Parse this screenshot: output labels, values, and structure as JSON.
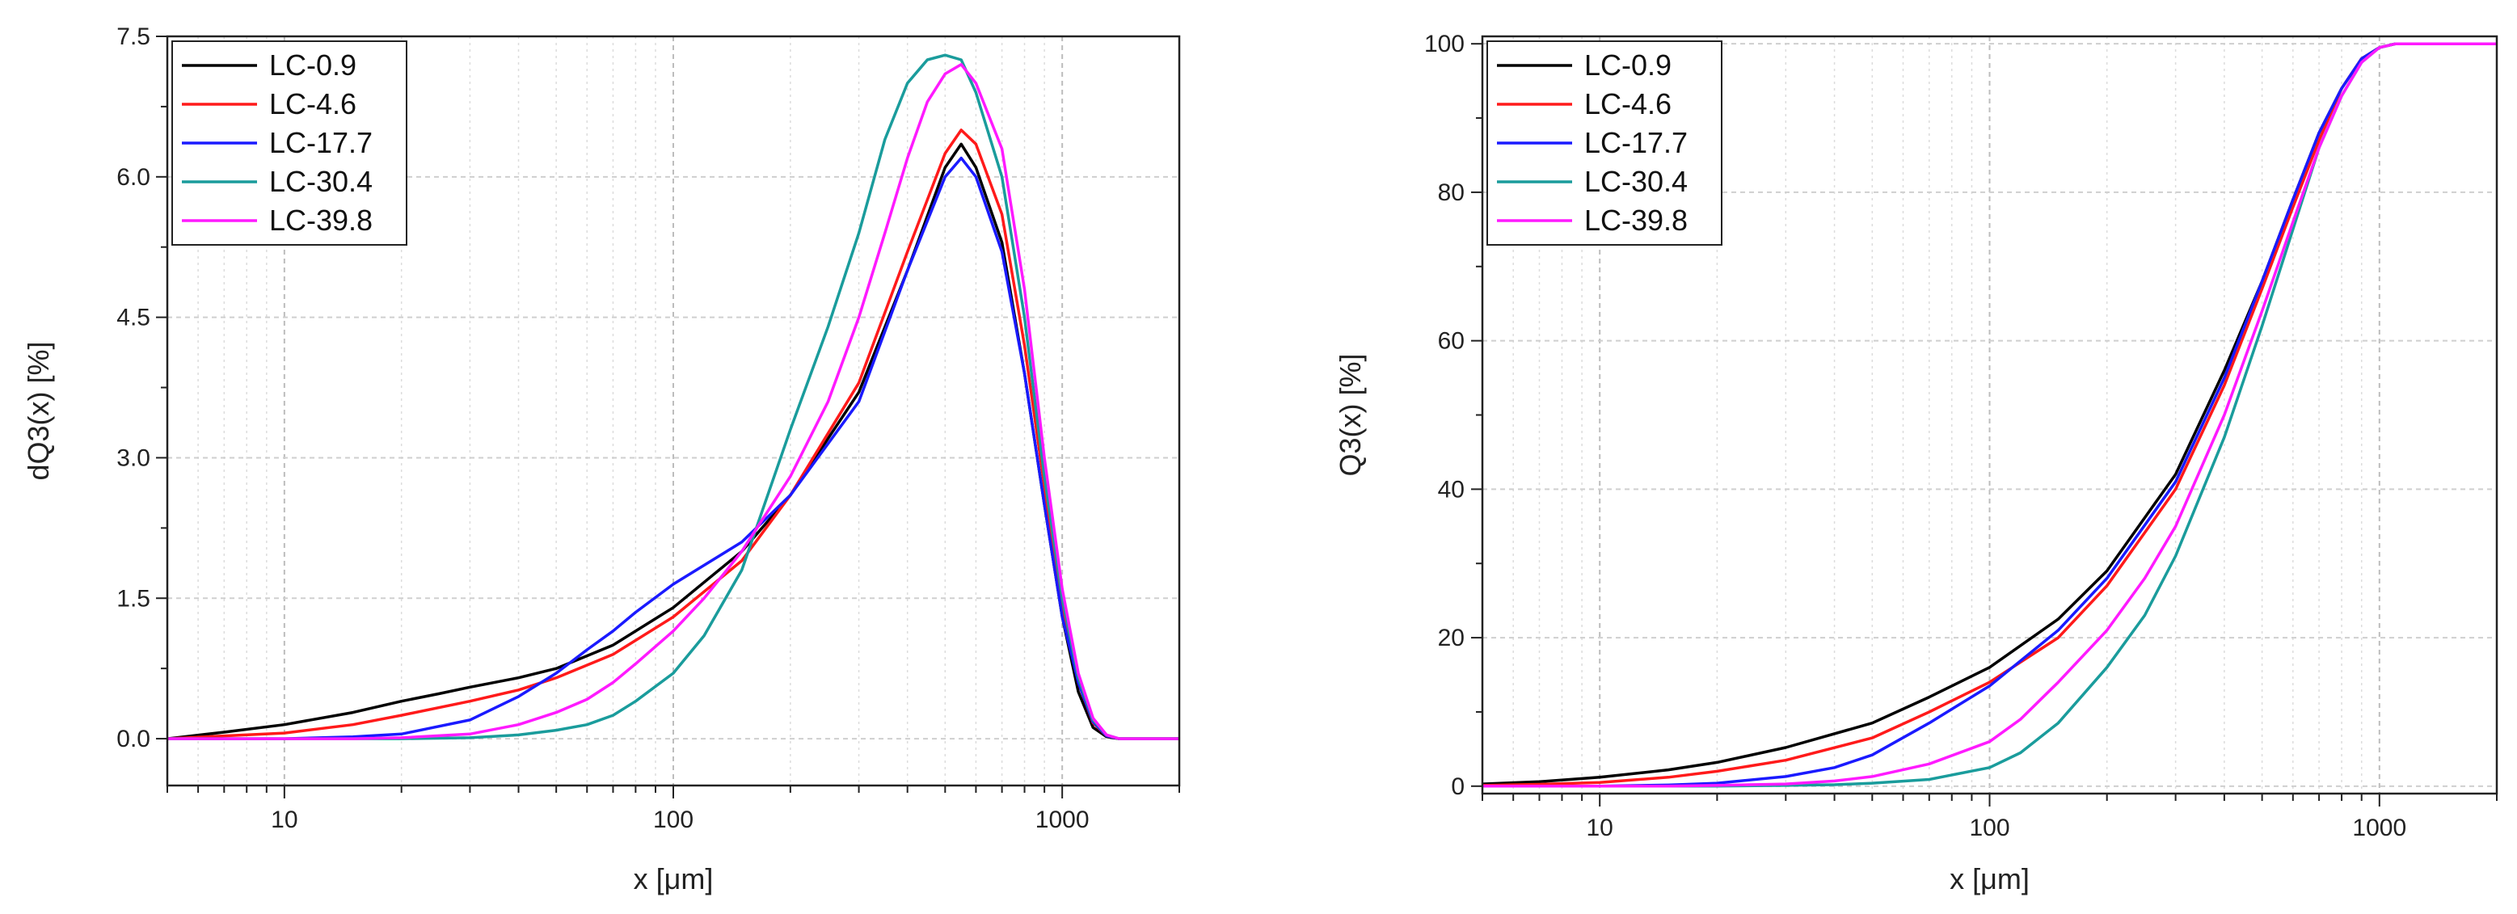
{
  "chart_data": [
    {
      "type": "line",
      "xscale": "log",
      "xlabel": "x [μm]",
      "ylabel": "dQ3(x) [%]",
      "xlim": [
        5,
        2000
      ],
      "ylim": [
        -0.5,
        7.5
      ],
      "xticks": [
        10,
        100,
        1000
      ],
      "xtick_labels": [
        "10",
        "100",
        "1000"
      ],
      "yticks": [
        0,
        1.5,
        3,
        4.5,
        6,
        7.5
      ],
      "ytick_labels": [
        "0.0",
        "1.5",
        "3.0",
        "4.5",
        "6.0",
        "7.5"
      ],
      "grid": true,
      "legend_position": "top-left",
      "series": [
        {
          "name": "LC-0.9",
          "color": "#000000",
          "x": [
            5,
            7,
            10,
            15,
            20,
            25,
            30,
            40,
            50,
            70,
            100,
            150,
            200,
            300,
            400,
            500,
            550,
            600,
            700,
            800,
            900,
            1000,
            1100,
            1200,
            1300,
            1400,
            2000
          ],
          "y": [
            0,
            0.07,
            0.15,
            0.28,
            0.4,
            0.48,
            0.55,
            0.65,
            0.75,
            1.0,
            1.4,
            2.0,
            2.6,
            3.7,
            5.0,
            6.1,
            6.35,
            6.1,
            5.3,
            3.9,
            2.5,
            1.3,
            0.5,
            0.12,
            0.02,
            0,
            0
          ]
        },
        {
          "name": "LC-4.6",
          "color": "#ff1a1a",
          "x": [
            5,
            7,
            10,
            15,
            20,
            30,
            40,
            50,
            70,
            100,
            150,
            200,
            300,
            400,
            500,
            550,
            600,
            700,
            800,
            900,
            1000,
            1100,
            1200,
            1300,
            1400,
            2000
          ],
          "y": [
            0,
            0.03,
            0.06,
            0.15,
            0.25,
            0.4,
            0.52,
            0.65,
            0.9,
            1.3,
            1.9,
            2.6,
            3.8,
            5.2,
            6.25,
            6.5,
            6.35,
            5.6,
            4.2,
            2.7,
            1.4,
            0.6,
            0.17,
            0.03,
            0,
            0
          ]
        },
        {
          "name": "LC-17.7",
          "color": "#1a1aff",
          "x": [
            5,
            10,
            15,
            20,
            30,
            40,
            50,
            60,
            70,
            80,
            100,
            150,
            200,
            300,
            400,
            500,
            550,
            600,
            700,
            800,
            900,
            1000,
            1100,
            1200,
            1300,
            1400,
            2000
          ],
          "y": [
            0,
            0,
            0.02,
            0.05,
            0.2,
            0.45,
            0.7,
            0.95,
            1.15,
            1.35,
            1.65,
            2.1,
            2.6,
            3.6,
            5.0,
            6.0,
            6.2,
            6.0,
            5.2,
            3.9,
            2.5,
            1.3,
            0.6,
            0.18,
            0.03,
            0,
            0
          ]
        },
        {
          "name": "LC-30.4",
          "color": "#1a9c9c",
          "x": [
            5,
            20,
            30,
            40,
            50,
            60,
            70,
            80,
            100,
            120,
            150,
            200,
            250,
            300,
            350,
            400,
            450,
            500,
            550,
            600,
            700,
            800,
            900,
            1000,
            1100,
            1200,
            1300,
            1400,
            2000
          ],
          "y": [
            0,
            0,
            0.01,
            0.04,
            0.09,
            0.15,
            0.25,
            0.4,
            0.7,
            1.1,
            1.8,
            3.3,
            4.4,
            5.4,
            6.4,
            7.0,
            7.25,
            7.3,
            7.25,
            6.9,
            6.0,
            4.5,
            2.8,
            1.5,
            0.65,
            0.2,
            0.04,
            0,
            0
          ]
        },
        {
          "name": "LC-39.8",
          "color": "#ff1aff",
          "x": [
            5,
            15,
            20,
            30,
            40,
            50,
            60,
            70,
            80,
            100,
            120,
            150,
            200,
            250,
            300,
            350,
            400,
            450,
            500,
            550,
            600,
            700,
            800,
            900,
            1000,
            1100,
            1200,
            1300,
            1400,
            2000
          ],
          "y": [
            0,
            0,
            0.01,
            0.05,
            0.15,
            0.28,
            0.42,
            0.6,
            0.8,
            1.15,
            1.5,
            2.0,
            2.8,
            3.6,
            4.5,
            5.4,
            6.2,
            6.8,
            7.1,
            7.2,
            7.0,
            6.3,
            4.8,
            3.0,
            1.6,
            0.7,
            0.22,
            0.04,
            0,
            0
          ]
        }
      ]
    },
    {
      "type": "line",
      "xscale": "log",
      "xlabel": "x [μm]",
      "ylabel": "Q3(x) [%]",
      "xlim": [
        5,
        2000
      ],
      "ylim": [
        -1,
        101
      ],
      "xticks": [
        10,
        100,
        1000
      ],
      "xtick_labels": [
        "10",
        "100",
        "1000"
      ],
      "yticks": [
        0,
        20,
        40,
        60,
        80,
        100
      ],
      "ytick_labels": [
        "0",
        "20",
        "40",
        "60",
        "80",
        "100"
      ],
      "grid": true,
      "legend_position": "top-left",
      "series": [
        {
          "name": "LC-0.9",
          "color": "#000000",
          "x": [
            5,
            7,
            10,
            15,
            20,
            30,
            50,
            70,
            100,
            150,
            200,
            300,
            400,
            500,
            600,
            700,
            800,
            900,
            1000,
            1100,
            2000
          ],
          "y": [
            0.3,
            0.6,
            1.2,
            2.2,
            3.2,
            5.2,
            8.5,
            12,
            16,
            22.5,
            29,
            42,
            56,
            68,
            79,
            88,
            94,
            98,
            99.5,
            100,
            100
          ]
        },
        {
          "name": "LC-4.6",
          "color": "#ff1a1a",
          "x": [
            5,
            7,
            10,
            15,
            20,
            30,
            50,
            70,
            100,
            150,
            200,
            300,
            400,
            500,
            600,
            700,
            800,
            900,
            1000,
            1100,
            2000
          ],
          "y": [
            0.1,
            0.25,
            0.5,
            1.2,
            2.0,
            3.5,
            6.5,
            10,
            14,
            20,
            27,
            40,
            54,
            67,
            78,
            87,
            94,
            98,
            99.5,
            100,
            100
          ]
        },
        {
          "name": "LC-17.7",
          "color": "#1a1aff",
          "x": [
            5,
            10,
            15,
            20,
            30,
            40,
            50,
            70,
            100,
            150,
            200,
            300,
            400,
            500,
            600,
            700,
            800,
            900,
            1000,
            1100,
            2000
          ],
          "y": [
            0,
            0,
            0.15,
            0.4,
            1.3,
            2.5,
            4.2,
            8.5,
            13.5,
            21,
            28,
            41,
            55,
            68,
            79,
            88,
            94,
            98,
            99.5,
            100,
            100
          ]
        },
        {
          "name": "LC-30.4",
          "color": "#1a9c9c",
          "x": [
            5,
            20,
            30,
            40,
            50,
            70,
            100,
            120,
            150,
            200,
            250,
            300,
            400,
            500,
            600,
            700,
            800,
            900,
            1000,
            1100,
            2000
          ],
          "y": [
            0,
            0,
            0.1,
            0.2,
            0.4,
            0.9,
            2.5,
            4.5,
            8.5,
            16,
            23,
            31,
            47,
            62,
            75,
            86,
            93,
            97.5,
            99.5,
            100,
            100
          ]
        },
        {
          "name": "LC-39.8",
          "color": "#ff1aff",
          "x": [
            5,
            15,
            20,
            30,
            40,
            50,
            70,
            100,
            120,
            150,
            200,
            250,
            300,
            400,
            500,
            600,
            700,
            800,
            900,
            1000,
            1100,
            2000
          ],
          "y": [
            0,
            0,
            0.1,
            0.3,
            0.7,
            1.3,
            3,
            6,
            9,
            14,
            21,
            28,
            35,
            50,
            64,
            76,
            86,
            93,
            97.5,
            99.5,
            100,
            100
          ]
        }
      ]
    }
  ]
}
